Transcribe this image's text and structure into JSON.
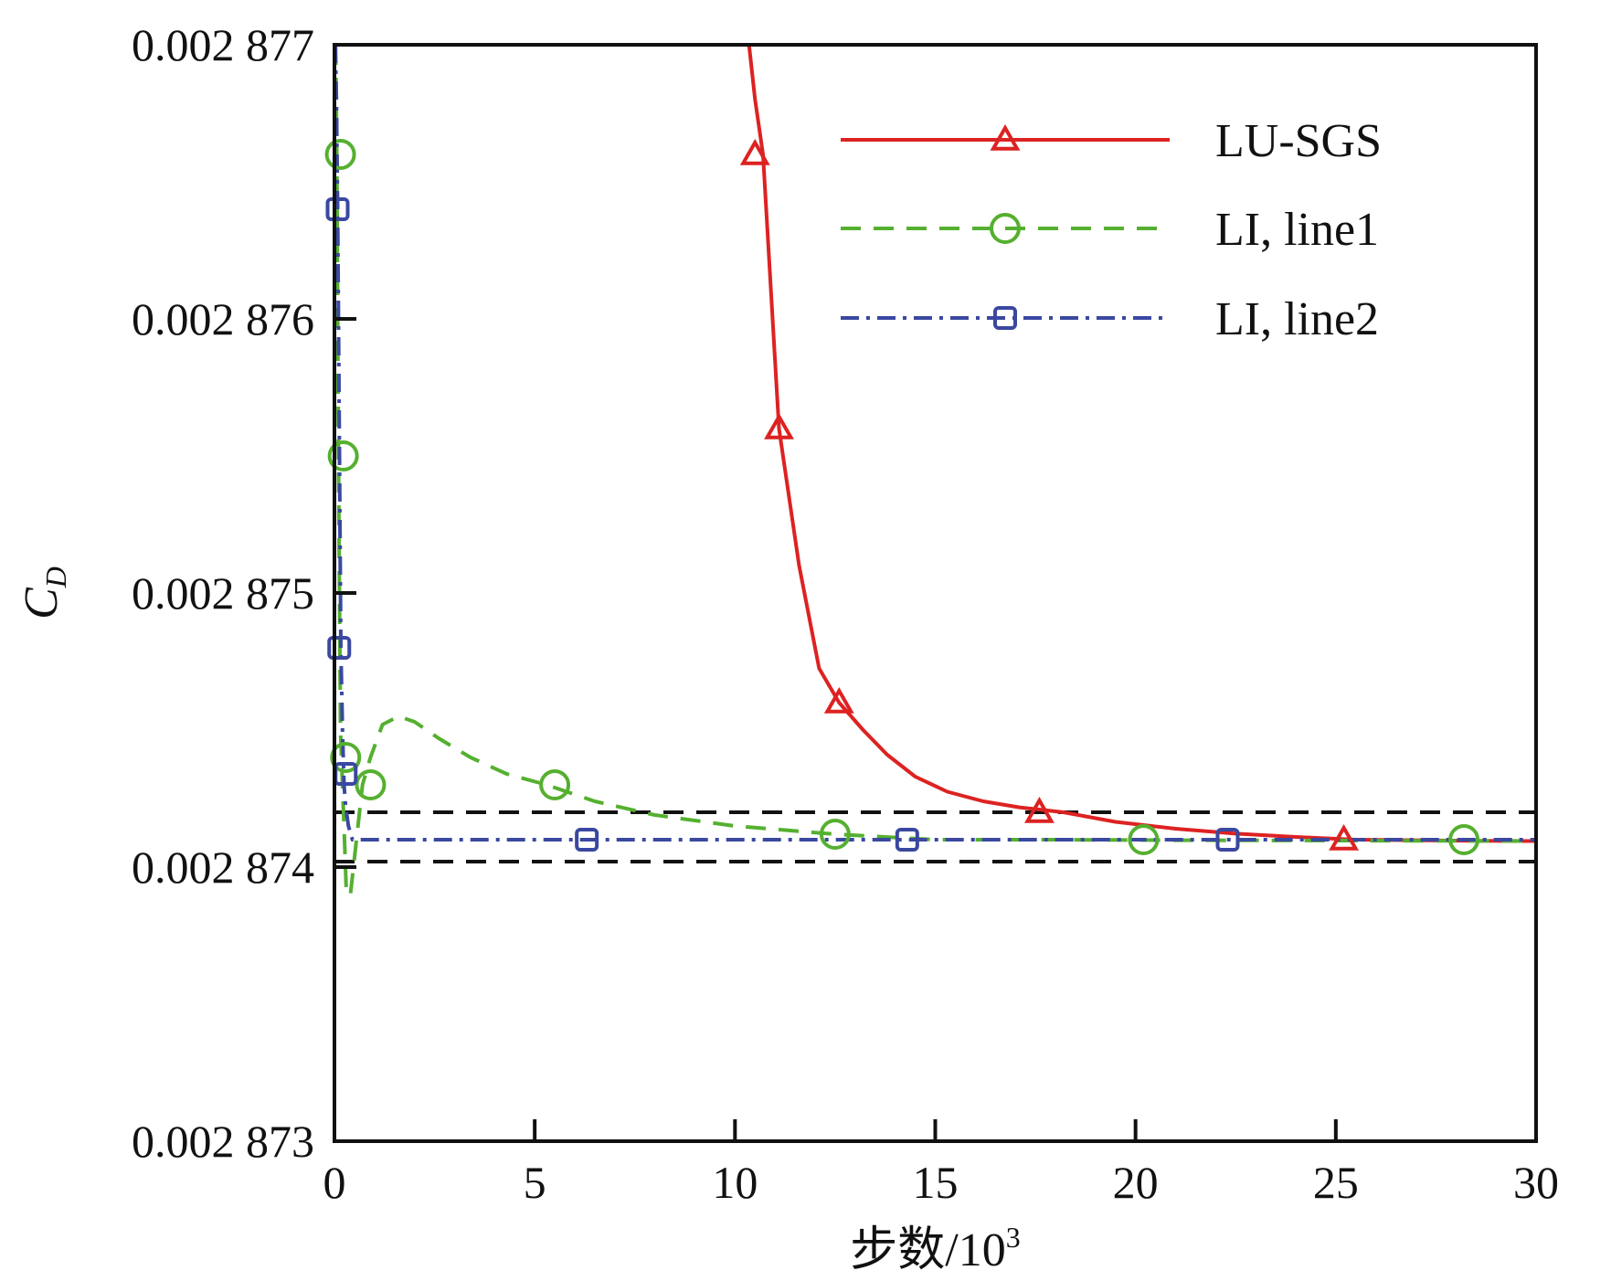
{
  "chart_data": {
    "type": "line",
    "title": "",
    "xlabel": "步数/10",
    "xlabel_superscript": "3",
    "ylabel": "C",
    "ylabel_subscript": "D",
    "xlim": [
      0,
      30
    ],
    "ylim": [
      0.002873,
      0.002877
    ],
    "x_ticks": [
      0,
      5,
      10,
      15,
      20,
      25,
      30
    ],
    "x_tick_labels": [
      "0",
      "5",
      "10",
      "15",
      "20",
      "25",
      "30"
    ],
    "y_ticks": [
      0.002873,
      0.002874,
      0.002875,
      0.002876,
      0.002877
    ],
    "y_tick_labels": [
      "0.002 873",
      "0.002 874",
      "0.002 875",
      "0.002 876",
      "0.002 877"
    ],
    "grid": false,
    "legend_position": "top-right",
    "reference_lines": [
      {
        "name": "upper-band",
        "y": 0.0028742,
        "color": "#111111",
        "style": "dashed"
      },
      {
        "name": "lower-band",
        "y": 0.00287402,
        "color": "#111111",
        "style": "dashed"
      }
    ],
    "series": [
      {
        "name": "LU-SGS",
        "color": "#dd2222",
        "line_style": "solid",
        "marker": "triangle",
        "x": [
          10.35,
          10.5,
          10.7,
          11.1,
          11.6,
          12.1,
          12.6,
          13.2,
          13.8,
          14.5,
          15.3,
          16.2,
          17.1,
          18.2,
          19.5,
          21.0,
          22.5,
          24.0,
          25.5,
          27.0,
          28.5,
          30.0
        ],
        "y": [
          0.002877,
          0.0028768,
          0.0028766,
          0.0028756,
          0.0028751,
          0.002874725,
          0.0028746,
          0.0028745,
          0.00287441,
          0.00287433,
          0.002874275,
          0.00287424,
          0.002874218,
          0.0028742,
          0.002874165,
          0.00287414,
          0.002874122,
          0.00287411,
          0.0028741,
          0.002874098,
          0.002874096,
          0.002874095
        ],
        "marker_x": [
          10.5,
          11.1,
          12.6,
          17.6,
          25.2
        ],
        "marker_y": [
          0.0028766,
          0.0028756,
          0.0028746,
          0.0028742,
          0.0028741
        ]
      },
      {
        "name": "LI, line1",
        "color": "#55b030",
        "line_style": "dashed",
        "marker": "circle",
        "x": [
          0.03,
          0.06,
          0.1,
          0.15,
          0.2,
          0.25,
          0.3,
          0.4,
          0.55,
          0.7,
          0.9,
          1.2,
          1.6,
          2.0,
          2.6,
          3.4,
          4.3,
          5.3,
          6.5,
          8.0,
          10.0,
          12.5,
          15.0,
          18.0,
          21.0,
          24.0,
          27.0,
          30.0
        ],
        "y": [
          0.002877,
          0.0028766,
          0.0028755,
          0.0028745,
          0.0028743,
          0.0028741,
          0.0028739,
          0.0028739,
          0.0028741,
          0.0028743,
          0.0028744,
          0.00287452,
          0.00287455,
          0.00287453,
          0.00287447,
          0.0028744,
          0.00287434,
          0.0028743,
          0.00287424,
          0.00287419,
          0.00287415,
          0.00287412,
          0.0028741,
          0.0028741,
          0.002874098,
          0.002874097,
          0.002874096,
          0.002874095
        ],
        "marker_x": [
          0.15,
          0.22,
          0.28,
          0.9,
          5.5,
          12.5,
          20.2,
          28.2
        ],
        "marker_y": [
          0.0028766,
          0.0028755,
          0.0028744,
          0.0028743,
          0.0028743,
          0.00287412,
          0.0028741,
          0.0028741
        ]
      },
      {
        "name": "LI, line2",
        "color": "#3a48a0",
        "line_style": "dashdot",
        "marker": "square",
        "x": [
          0.02,
          0.05,
          0.08,
          0.12,
          0.16,
          0.2,
          0.24,
          0.28,
          0.35,
          0.45,
          0.6,
          0.8,
          1.2,
          2.0,
          4.0,
          6.3,
          10.0,
          14.3,
          18.0,
          22.3,
          26.0,
          30.0
        ],
        "y": [
          0.002877,
          0.0028768,
          0.0028764,
          0.0028756,
          0.0028748,
          0.0028745,
          0.0028743,
          0.00287422,
          0.00287415,
          0.0028741,
          0.0028741,
          0.0028741,
          0.0028741,
          0.0028741,
          0.0028741,
          0.0028741,
          0.0028741,
          0.0028741,
          0.0028741,
          0.0028741,
          0.0028741,
          0.0028741
        ],
        "marker_x": [
          0.08,
          0.12,
          0.28,
          6.3,
          14.3,
          22.3
        ],
        "marker_y": [
          0.0028764,
          0.0028748,
          0.00287434,
          0.0028741,
          0.0028741,
          0.0028741
        ]
      }
    ]
  }
}
